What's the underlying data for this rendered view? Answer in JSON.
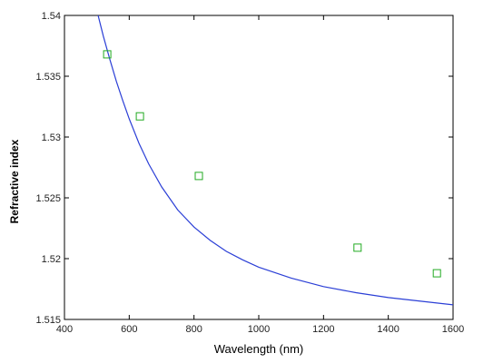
{
  "chart_data": {
    "type": "scatter",
    "title": "",
    "xlabel": "Wavelength (nm)",
    "ylabel": "Refractive index",
    "xlim": [
      400,
      1600
    ],
    "ylim": [
      1.515,
      1.54
    ],
    "xticks": [
      400,
      600,
      800,
      1000,
      1200,
      1400,
      1600
    ],
    "yticks": [
      1.515,
      1.52,
      1.525,
      1.53,
      1.535,
      1.54
    ],
    "xtick_labels": [
      "400",
      "600",
      "800",
      "1000",
      "1200",
      "1400",
      "1600"
    ],
    "ytick_labels": [
      "1.515",
      "1.52",
      "1.525",
      "1.53",
      "1.535",
      "1.54"
    ],
    "grid": false,
    "series": [
      {
        "kind": "markers",
        "marker": "square",
        "color": "#22aa22",
        "x": [
          532,
          633,
          815,
          1305,
          1550
        ],
        "y": [
          1.5368,
          1.5317,
          1.5268,
          1.5209,
          1.5188
        ]
      },
      {
        "kind": "line",
        "color": "#2b3fd6",
        "x": [
          500,
          520,
          540,
          560,
          580,
          600,
          630,
          660,
          700,
          750,
          800,
          850,
          900,
          950,
          1000,
          1100,
          1200,
          1300,
          1400,
          1500,
          1600
        ],
        "y": [
          1.5404,
          1.5383,
          1.5364,
          1.5346,
          1.533,
          1.5315,
          1.5295,
          1.5278,
          1.5259,
          1.524,
          1.5226,
          1.5215,
          1.5206,
          1.5199,
          1.5193,
          1.5184,
          1.5177,
          1.5172,
          1.5168,
          1.5165,
          1.5162
        ]
      }
    ]
  }
}
